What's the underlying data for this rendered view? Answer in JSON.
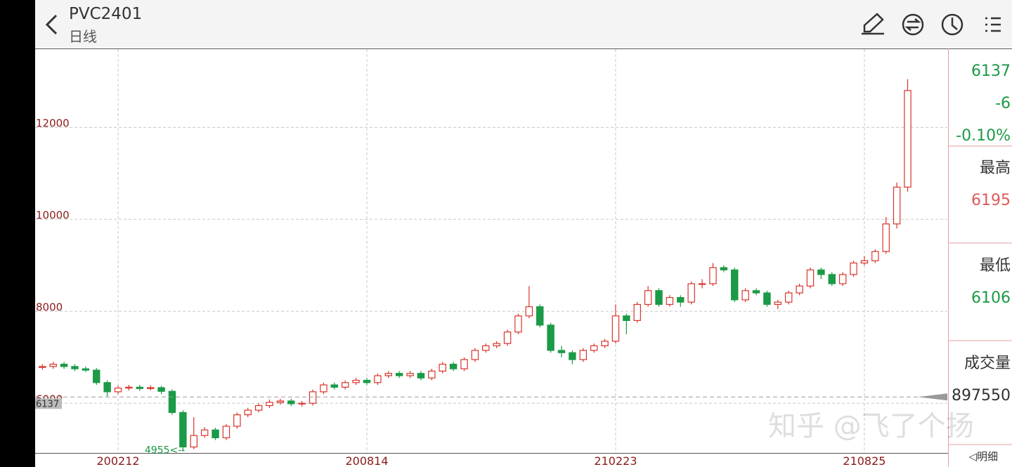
{
  "header": {
    "title": "PVC2401",
    "subtitle": "日线"
  },
  "quote": {
    "price": 6137,
    "change": -6,
    "change_pct": "-0.10%",
    "high_label": "最高",
    "high": 6195,
    "low_label": "最低",
    "low": 6106,
    "volume_label": "成交量",
    "volume": 897550
  },
  "footer": {
    "detail": "◁明细"
  },
  "watermark": "知乎 @飞了个扬",
  "chart_data": {
    "type": "candlestick",
    "categories": [
      null,
      null,
      null,
      null,
      null,
      null,
      null,
      "200212",
      null,
      null,
      null,
      null,
      null,
      null,
      null,
      null,
      null,
      null,
      null,
      null,
      null,
      null,
      null,
      null,
      null,
      null,
      null,
      null,
      null,
      null,
      "200814",
      null,
      null,
      null,
      null,
      null,
      null,
      null,
      null,
      null,
      null,
      null,
      null,
      null,
      null,
      null,
      null,
      null,
      null,
      null,
      null,
      null,
      null,
      "210223",
      null,
      null,
      null,
      null,
      null,
      null,
      null,
      null,
      null,
      null,
      null,
      null,
      null,
      null,
      null,
      null,
      null,
      null,
      null,
      null,
      null,
      null,
      "210825",
      null,
      null,
      null,
      null
    ],
    "open": [
      6780,
      6800,
      6850,
      6800,
      6750,
      6720,
      6450,
      6250,
      6330,
      6350,
      6320,
      6340,
      6260,
      5800,
      5050,
      5300,
      5420,
      5250,
      5500,
      5750,
      5850,
      5950,
      6020,
      6050,
      5990,
      6000,
      6250,
      6400,
      6350,
      6450,
      6500,
      6450,
      6600,
      6650,
      6600,
      6650,
      6550,
      6700,
      6850,
      6750,
      6950,
      7150,
      7250,
      7300,
      7550,
      7900,
      8100,
      7700,
      7150,
      7100,
      6950,
      7150,
      7250,
      7350,
      7900,
      7800,
      8150,
      8450,
      8150,
      8300,
      8200,
      8600,
      8600,
      8950,
      8900,
      8250,
      8450,
      8400,
      8150,
      8200,
      8400,
      8550,
      8900,
      8800,
      8600,
      8800,
      9050,
      9100,
      9300,
      9900,
      10700
    ],
    "high": [
      6850,
      6900,
      6900,
      6850,
      6800,
      6770,
      6500,
      6380,
      6400,
      6400,
      6390,
      6380,
      6300,
      5850,
      5700,
      5480,
      5470,
      5550,
      5800,
      5900,
      6000,
      6080,
      6100,
      6100,
      6050,
      6300,
      6450,
      6450,
      6500,
      6550,
      6550,
      6650,
      6700,
      6700,
      6700,
      6700,
      6750,
      6900,
      6900,
      7000,
      7200,
      7300,
      7350,
      7600,
      7950,
      8550,
      8150,
      7750,
      7250,
      7150,
      7200,
      7300,
      7400,
      8150,
      7950,
      8200,
      8550,
      8500,
      8350,
      8350,
      8650,
      8700,
      9050,
      9000,
      8950,
      8500,
      8500,
      8450,
      8250,
      8450,
      8600,
      8950,
      8950,
      8850,
      8850,
      9100,
      9200,
      9350,
      10050,
      10800,
      13050
    ],
    "low": [
      6730,
      6750,
      6750,
      6700,
      6680,
      6400,
      6150,
      6200,
      6280,
      6270,
      6280,
      6200,
      5750,
      4955,
      5000,
      5250,
      5200,
      5200,
      5450,
      5700,
      5800,
      5900,
      5970,
      5940,
      5930,
      5950,
      6200,
      6300,
      6300,
      6400,
      6400,
      6400,
      6550,
      6550,
      6550,
      6500,
      6500,
      6650,
      6700,
      6700,
      6900,
      7100,
      7200,
      7250,
      7500,
      7850,
      7650,
      7100,
      7000,
      6850,
      6900,
      7100,
      7200,
      7300,
      7500,
      7750,
      8100,
      8100,
      8100,
      8100,
      8150,
      8500,
      8550,
      8850,
      8200,
      8200,
      8350,
      8100,
      8050,
      8150,
      8350,
      8500,
      8700,
      8550,
      8550,
      8750,
      9000,
      9050,
      9250,
      9800,
      10600
    ],
    "close": [
      6800,
      6850,
      6800,
      6750,
      6720,
      6450,
      6250,
      6330,
      6350,
      6320,
      6340,
      6260,
      5800,
      5050,
      5300,
      5420,
      5250,
      5500,
      5750,
      5850,
      5950,
      6020,
      6050,
      5990,
      6000,
      6250,
      6400,
      6350,
      6450,
      6500,
      6450,
      6600,
      6650,
      6600,
      6650,
      6550,
      6700,
      6850,
      6750,
      6950,
      7150,
      7250,
      7300,
      7550,
      7900,
      8100,
      7700,
      7150,
      7100,
      6950,
      7150,
      7250,
      7350,
      7900,
      7800,
      8150,
      8450,
      8150,
      8300,
      8200,
      8600,
      8600,
      8950,
      8900,
      8250,
      8450,
      8400,
      8150,
      8200,
      8400,
      8550,
      8900,
      8800,
      8600,
      8800,
      9050,
      9100,
      9300,
      9900,
      10700,
      12800
    ],
    "up_color": "#d9342b",
    "down_color": "#1b9a47",
    "current_price": 6137,
    "low_marker": "4955<--",
    "ylim": [
      4920,
      13700
    ],
    "yticks": [
      6000,
      8000,
      10000,
      12000
    ],
    "grid": true
  }
}
